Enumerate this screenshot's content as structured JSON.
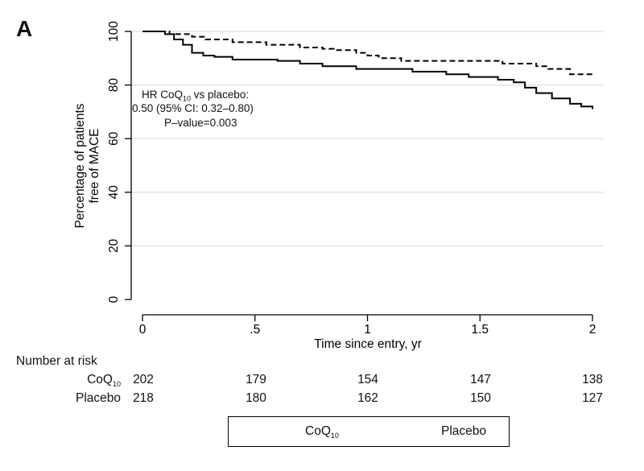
{
  "panel_label": "A",
  "annotation": {
    "line1_prefix": "HR CoQ",
    "line1_sub": "10",
    "line1_suffix": " vs placebo:",
    "line2": "0.50 (95% CI: 0.32–0.80)",
    "line3": "P–value=0.003"
  },
  "risk_table": {
    "header": "Number at risk",
    "rows": [
      {
        "label": "CoQ",
        "label_sub": "10",
        "values": [
          "202",
          "179",
          "154",
          "147",
          "138"
        ]
      },
      {
        "label": "Placebo",
        "label_sub": "",
        "values": [
          "218",
          "180",
          "162",
          "150",
          "127"
        ]
      }
    ]
  },
  "legend": {
    "coq_label": "CoQ",
    "coq_sub": "10",
    "placebo_label": "Placebo"
  },
  "chart_data": {
    "type": "line",
    "xlabel": "Time since entry, yr",
    "ylabel_line1": "Percentage of patients",
    "ylabel_line2": "free of MACE",
    "xlim": [
      0,
      2
    ],
    "ylim": [
      0,
      100
    ],
    "x_ticks": [
      0,
      0.5,
      1,
      1.5,
      2
    ],
    "x_tick_labels": [
      "0",
      ".5",
      "1",
      "1.5",
      "2"
    ],
    "y_ticks": [
      0,
      20,
      40,
      60,
      80,
      100
    ],
    "y_tick_labels": [
      "0",
      "20",
      "40",
      "60",
      "80",
      "100"
    ],
    "grid": true,
    "legend_position": "bottom",
    "series": [
      {
        "name": "CoQ10",
        "style": "dashed",
        "color": "#000000",
        "points": [
          [
            0,
            100
          ],
          [
            0.1,
            100
          ],
          [
            0.12,
            99
          ],
          [
            0.2,
            99
          ],
          [
            0.22,
            98
          ],
          [
            0.28,
            97
          ],
          [
            0.4,
            96
          ],
          [
            0.55,
            95
          ],
          [
            0.7,
            94
          ],
          [
            0.8,
            93.5
          ],
          [
            0.85,
            93
          ],
          [
            0.95,
            92
          ],
          [
            1.0,
            91
          ],
          [
            1.05,
            90
          ],
          [
            1.15,
            89
          ],
          [
            1.4,
            89
          ],
          [
            1.6,
            88
          ],
          [
            1.75,
            87
          ],
          [
            1.8,
            86
          ],
          [
            1.9,
            84
          ],
          [
            2.0,
            84
          ]
        ]
      },
      {
        "name": "Placebo",
        "style": "solid",
        "color": "#000000",
        "points": [
          [
            0,
            100
          ],
          [
            0.08,
            100
          ],
          [
            0.1,
            99
          ],
          [
            0.14,
            97
          ],
          [
            0.18,
            95
          ],
          [
            0.22,
            92
          ],
          [
            0.27,
            91
          ],
          [
            0.32,
            90.5
          ],
          [
            0.4,
            89.5
          ],
          [
            0.6,
            89
          ],
          [
            0.7,
            88
          ],
          [
            0.8,
            87
          ],
          [
            0.95,
            86
          ],
          [
            1.2,
            85
          ],
          [
            1.35,
            84
          ],
          [
            1.45,
            83
          ],
          [
            1.58,
            82
          ],
          [
            1.65,
            81
          ],
          [
            1.7,
            79
          ],
          [
            1.75,
            77
          ],
          [
            1.82,
            75
          ],
          [
            1.9,
            73
          ],
          [
            1.95,
            72
          ],
          [
            2.0,
            71
          ]
        ]
      }
    ]
  }
}
